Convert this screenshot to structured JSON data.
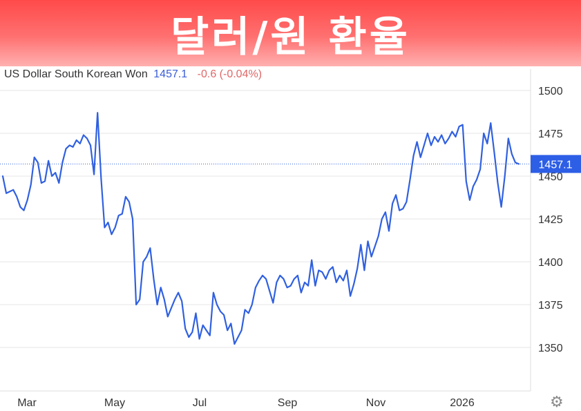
{
  "banner": {
    "title": "달러/원 환율"
  },
  "legend": {
    "instrument": "US Dollar South Korean Won",
    "price": "1457.1",
    "change": "-0.6 (-0.04%)"
  },
  "colors": {
    "line": "#3060e0",
    "badge": "#2d5ee6",
    "change_negative": "#e06666",
    "grid": "#e6e6e6"
  },
  "icons": {
    "settings": "gear-icon"
  },
  "chart_data": {
    "type": "line",
    "title": "",
    "xlabel": "",
    "ylabel": "",
    "ylim": [
      1325,
      1505
    ],
    "y_ticks": [
      "1350",
      "1375",
      "1400",
      "1425",
      "1450",
      "1475",
      "1500"
    ],
    "x_ticks": [
      "Mar",
      "May",
      "Jul",
      "Sep",
      "Nov",
      "2026"
    ],
    "last_value": 1457.1,
    "last_label": "1457.1",
    "grid": true,
    "series": [
      {
        "values": [
          1450,
          1440,
          1441,
          1442,
          1438,
          1432,
          1430,
          1436,
          1445,
          1461,
          1458,
          1446,
          1447,
          1459,
          1450,
          1452,
          1446,
          1458,
          1466,
          1468,
          1467,
          1471,
          1469,
          1474,
          1472,
          1468,
          1451,
          1487,
          1449,
          1420,
          1423,
          1416,
          1420,
          1427,
          1428,
          1438,
          1435,
          1425,
          1375,
          1378,
          1400,
          1403,
          1408,
          1390,
          1375,
          1385,
          1378,
          1368,
          1373,
          1378,
          1382,
          1377,
          1361,
          1356,
          1359,
          1370,
          1355,
          1363,
          1360,
          1357,
          1382,
          1375,
          1371,
          1369,
          1360,
          1364,
          1352,
          1356,
          1360,
          1372,
          1370,
          1375,
          1385,
          1389,
          1392,
          1390,
          1383,
          1376,
          1388,
          1392,
          1390,
          1385,
          1386,
          1390,
          1392,
          1382,
          1388,
          1386,
          1401,
          1386,
          1395,
          1394,
          1390,
          1395,
          1397,
          1388,
          1392,
          1389,
          1395,
          1380,
          1387,
          1396,
          1410,
          1395,
          1412,
          1403,
          1409,
          1415,
          1425,
          1429,
          1418,
          1434,
          1439,
          1430,
          1431,
          1435,
          1448,
          1462,
          1470,
          1461,
          1468,
          1475,
          1468,
          1473,
          1470,
          1474,
          1469,
          1472,
          1476,
          1473,
          1479,
          1480,
          1447,
          1436,
          1444,
          1448,
          1454,
          1475,
          1469,
          1481,
          1464,
          1446,
          1432,
          1450,
          1472,
          1463,
          1458,
          1457.1
        ]
      }
    ]
  }
}
